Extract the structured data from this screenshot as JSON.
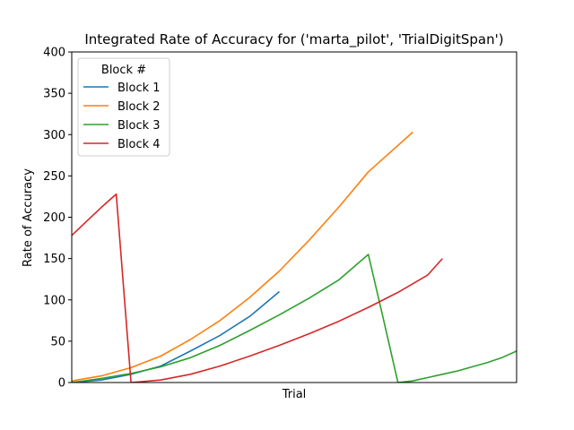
{
  "chart_data": {
    "type": "line",
    "title": "Integrated Rate of Accuracy for ('marta_pilot', 'TrialDigitSpan')",
    "xlabel": "Trial",
    "ylabel": "Rate of Accuracy",
    "xlim": [
      0,
      30
    ],
    "ylim": [
      0,
      400
    ],
    "yticks": [
      0,
      50,
      100,
      150,
      200,
      250,
      300,
      350,
      400
    ],
    "xticks_visible": false,
    "grid": false,
    "legend": {
      "title": "Block #",
      "placement": "upper-left",
      "entries": [
        "Block 1",
        "Block 2",
        "Block 3",
        "Block 4"
      ]
    },
    "series": [
      {
        "name": "Block 1",
        "color": "#1f77b4",
        "x": [
          0,
          2,
          4,
          6,
          8,
          10,
          12,
          14
        ],
        "y": [
          0,
          3,
          10,
          20,
          38,
          57,
          80,
          110
        ]
      },
      {
        "name": "Block 2",
        "color": "#ff7f0e",
        "x": [
          0,
          2,
          4,
          6,
          8,
          10,
          12,
          14,
          16,
          18,
          20,
          23
        ],
        "y": [
          2,
          8,
          18,
          32,
          52,
          75,
          103,
          135,
          172,
          212,
          255,
          303
        ]
      },
      {
        "name": "Block 3",
        "color": "#2ca02c",
        "x": [
          0,
          2,
          4,
          6,
          8,
          10,
          12,
          14,
          16,
          18,
          20,
          21,
          22,
          23,
          24,
          25,
          26,
          27,
          28,
          29,
          30
        ],
        "y": [
          0,
          5,
          11,
          19,
          30,
          45,
          63,
          82,
          102,
          124,
          155,
          78,
          0,
          2,
          6,
          10,
          14,
          19,
          24,
          30,
          38
        ]
      },
      {
        "name": "Block 4",
        "color": "#d62728",
        "x": [
          0,
          1,
          2,
          3,
          4,
          6,
          8,
          10,
          12,
          14,
          16,
          18,
          20,
          22,
          24,
          25
        ],
        "y": [
          178,
          195,
          212,
          228,
          0,
          3,
          10,
          20,
          32,
          45,
          59,
          74,
          91,
          109,
          130,
          150
        ]
      }
    ]
  }
}
